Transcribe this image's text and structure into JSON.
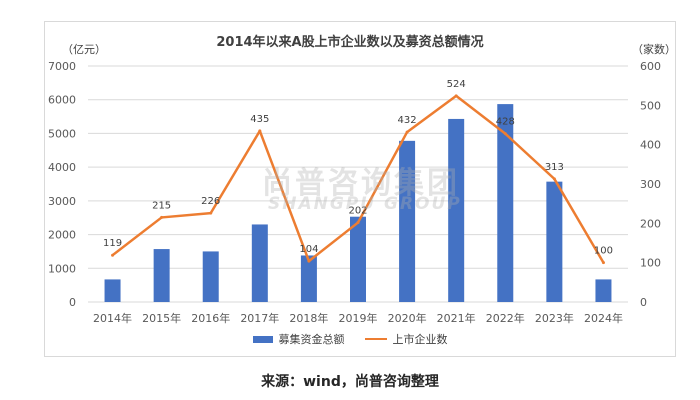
{
  "title": "2014年以来A股上市企业数以及募资总额情况",
  "units": {
    "left": "（亿元）",
    "right": "（家数）"
  },
  "watermark": {
    "cn": "尚普咨询集团",
    "en": "SHANGPU GROUP"
  },
  "source": "来源：wind，尚普咨询整理",
  "colors": {
    "bar": "#4472c4",
    "line": "#ed7d31",
    "grid": "#d9d9d9",
    "text": "#595959"
  },
  "chart_data": {
    "type": "bar",
    "categories": [
      "2014年",
      "2015年",
      "2016年",
      "2017年",
      "2018年",
      "2019年",
      "2020年",
      "2021年",
      "2022年",
      "2023年",
      "2024年"
    ],
    "series": [
      {
        "name": "募集资金总额",
        "type": "bar",
        "axis": "left",
        "values": [
          670,
          1570,
          1500,
          2300,
          1380,
          2530,
          4780,
          5430,
          5870,
          3570,
          670
        ]
      },
      {
        "name": "上市企业数",
        "type": "line",
        "axis": "right",
        "values": [
          119,
          215,
          226,
          435,
          104,
          202,
          432,
          524,
          428,
          313,
          100
        ],
        "data_labels": [
          "119",
          "215",
          "226",
          "435",
          "104",
          "202",
          "432",
          "524",
          "428",
          "313",
          "100"
        ]
      }
    ],
    "y_left": {
      "ylim": [
        0,
        7000
      ],
      "ticks": [
        "0",
        "1000",
        "2000",
        "3000",
        "4000",
        "5000",
        "6000",
        "7000"
      ]
    },
    "y_right": {
      "ylim": [
        0,
        600
      ],
      "ticks": [
        "0",
        "100",
        "200",
        "300",
        "400",
        "500",
        "600"
      ]
    },
    "grid": true,
    "legend": "bottom"
  }
}
